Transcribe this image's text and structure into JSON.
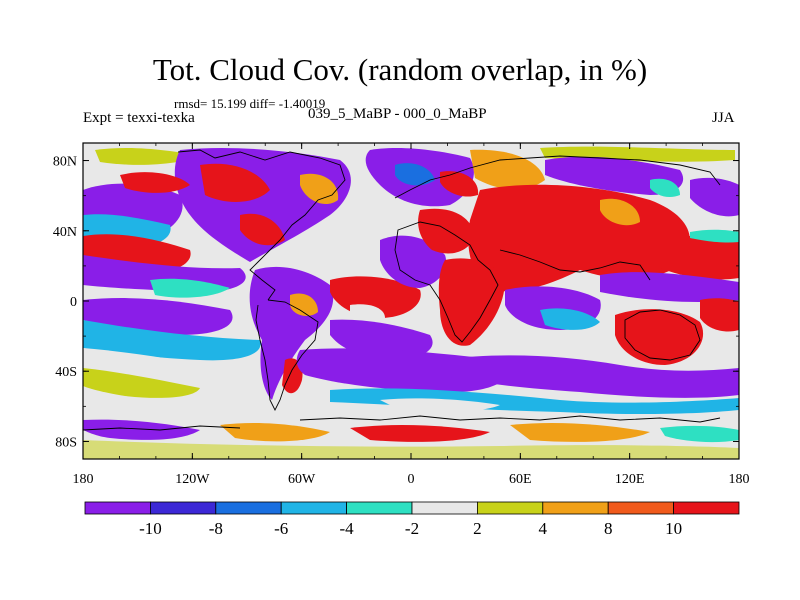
{
  "title": "Tot. Cloud Cov. (random overlap, in %)",
  "stats": "rmsd= 15.199 diff= -1.40019",
  "experiment": "Expt = texxi-texka",
  "difference_label": "039_5_MaBP - 000_0_MaBP",
  "season": "JJA",
  "lat_ticks": [
    "80N",
    "40N",
    "0",
    "40S",
    "80S"
  ],
  "lon_ticks": [
    "180",
    "120W",
    "60W",
    "0",
    "60E",
    "120E",
    "180"
  ],
  "colorbar": {
    "labels": [
      "-10",
      "-8",
      "-6",
      "-4",
      "-2",
      "2",
      "4",
      "8",
      "10"
    ],
    "colors": [
      "#8a1ee8",
      "#3c28d6",
      "#1a6fe0",
      "#20b4e6",
      "#2ee0c2",
      "#e8e8e8",
      "#c8d21a",
      "#f0a018",
      "#f05a1c",
      "#e6141a"
    ]
  }
}
